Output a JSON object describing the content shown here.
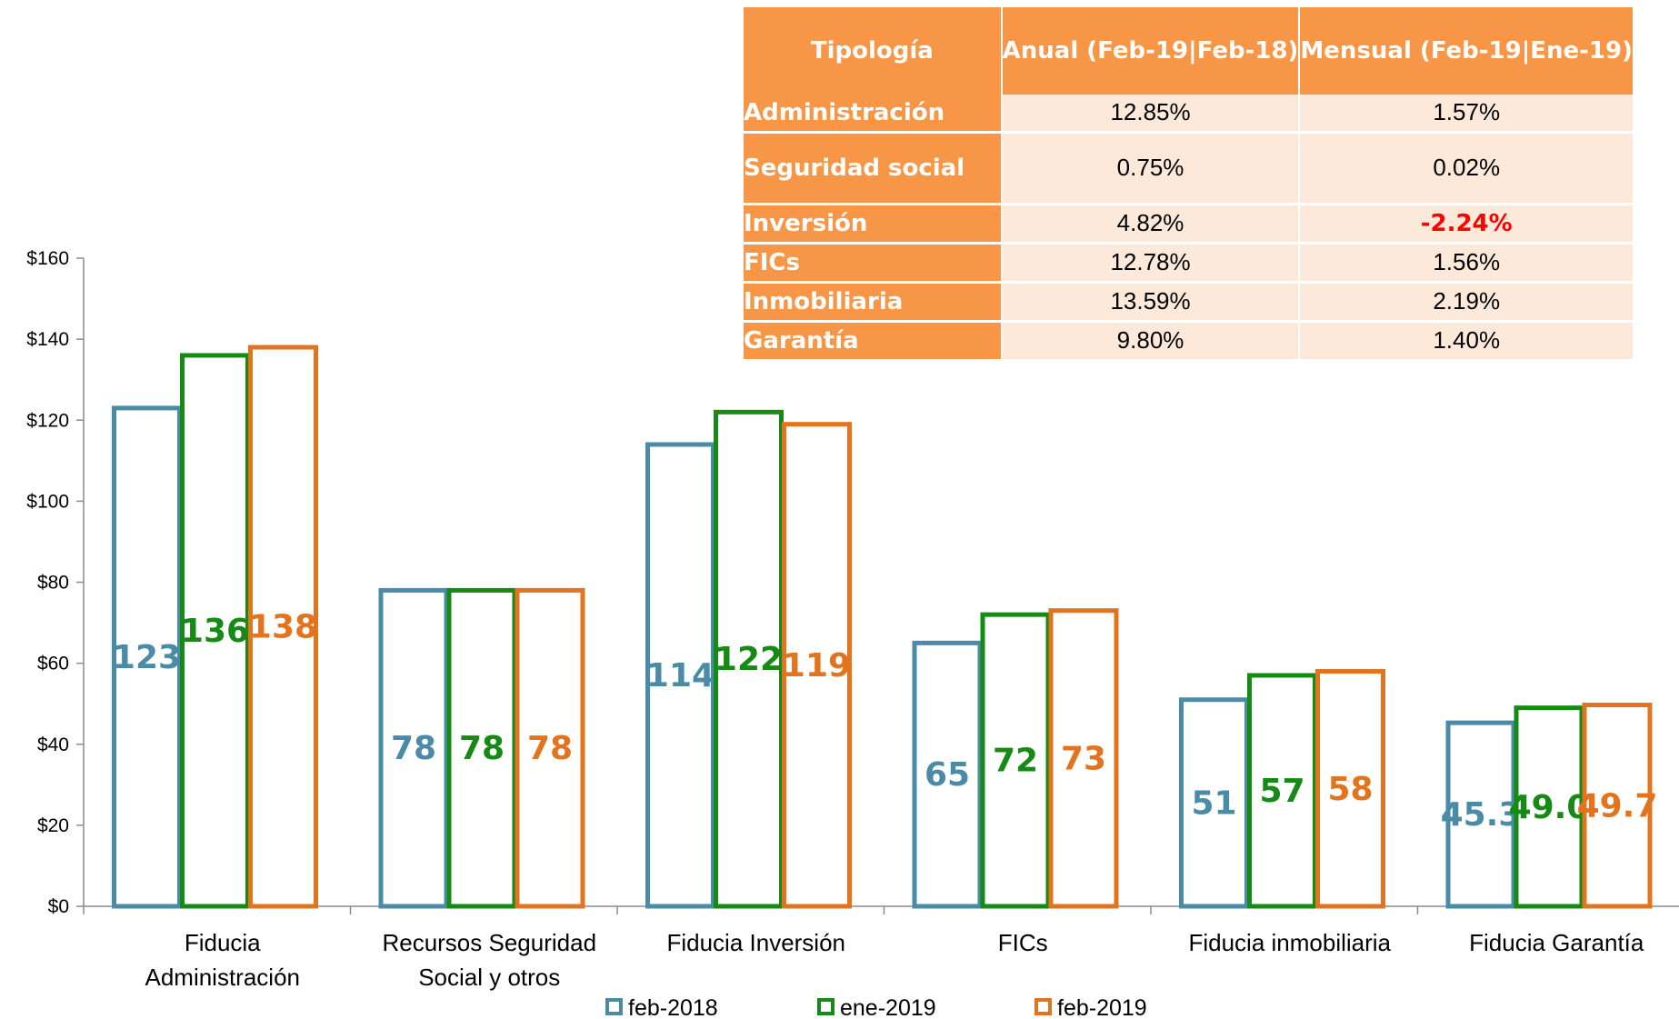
{
  "chart_data": {
    "type": "bar",
    "categories": [
      [
        "Fiducia",
        "Administración"
      ],
      [
        "Recursos Seguridad",
        "Social y otros"
      ],
      [
        "Fiducia Inversión"
      ],
      [
        "FICs"
      ],
      [
        "Fiducia inmobiliaria"
      ],
      [
        "Fiducia Garantía"
      ]
    ],
    "series": [
      {
        "name": "feb-2018",
        "color": "#4a8ca8",
        "values": [
          123,
          78,
          114,
          65,
          51,
          45.3
        ],
        "labels": [
          "123",
          "78",
          "114",
          "65",
          "51",
          "45.3"
        ]
      },
      {
        "name": "ene-2019",
        "color": "#158a15",
        "values": [
          136,
          78,
          122,
          72,
          57,
          49.0
        ],
        "labels": [
          "136",
          "78",
          "122",
          "72",
          "57",
          "49.0"
        ]
      },
      {
        "name": "feb-2019",
        "color": "#e3741f",
        "values": [
          138,
          78,
          119,
          73,
          58,
          49.7
        ],
        "labels": [
          "138",
          "78",
          "119",
          "73",
          "58",
          "49.7"
        ]
      }
    ],
    "ylim": [
      0,
      160
    ],
    "yticks": [
      0,
      20,
      40,
      60,
      80,
      100,
      120,
      140,
      160
    ],
    "ytick_labels": [
      "$0",
      "$20",
      "$40",
      "$60",
      "$80",
      "$100",
      "$120",
      "$140",
      "$160"
    ],
    "legend_position": "bottom",
    "grid": false
  },
  "table": {
    "headers": [
      "Tipología",
      "Anual (Feb-19|Feb-18)",
      "Mensual (Feb-19|Ene-19)"
    ],
    "rows": [
      {
        "name": "Administración",
        "anual": "12.85%",
        "mensual": "1.57%"
      },
      {
        "name": "Seguridad social",
        "anual": "0.75%",
        "mensual": "0.02%"
      },
      {
        "name": "Inversión",
        "anual": "4.82%",
        "mensual": "-2.24%"
      },
      {
        "name": "FICs",
        "anual": "12.78%",
        "mensual": "1.56%"
      },
      {
        "name": "Inmobiliaria",
        "anual": "13.59%",
        "mensual": "2.19%"
      },
      {
        "name": "Garantía",
        "anual": "9.80%",
        "mensual": "1.40%"
      }
    ],
    "negative_color": "#ff0000",
    "header_color": "#f79646",
    "cell_color": "#fde9d9"
  }
}
